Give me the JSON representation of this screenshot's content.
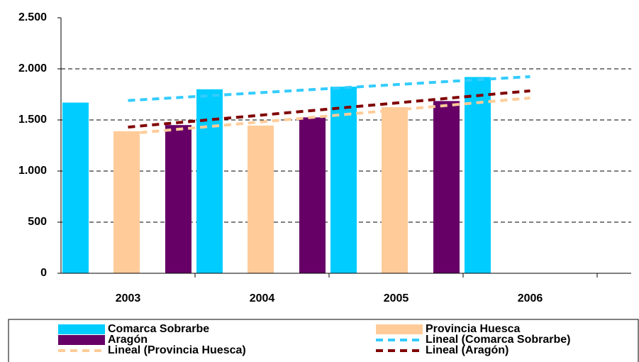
{
  "chart_data": {
    "type": "bar",
    "categories": [
      "2003",
      "2004",
      "2005",
      "2006"
    ],
    "series": [
      {
        "name": "Comarca Sobrarbe",
        "color": "#00ccff",
        "values": [
          1670,
          1800,
          1825,
          1920
        ]
      },
      {
        "name": "Provincia Huesca",
        "color": "#ffcc99",
        "values": [
          1390,
          1445,
          1625,
          null
        ]
      },
      {
        "name": "Aragón",
        "color": "#660066",
        "values": [
          1450,
          1525,
          1685,
          null
        ]
      }
    ],
    "trendlines": [
      {
        "name": "Lineal (Comarca Sobrarbe)",
        "color": "#33ccff",
        "values": [
          1690,
          1768,
          1846,
          1924
        ]
      },
      {
        "name": "Lineal (Provincia Huesca)",
        "color": "#ffcc99",
        "values": [
          1365,
          1482,
          1598,
          1715
        ]
      },
      {
        "name": "Lineal (Aragón)",
        "color": "#800000",
        "values": [
          1430,
          1548,
          1666,
          1785
        ]
      }
    ],
    "ylim": [
      0,
      2500
    ],
    "yticks": [
      0,
      500,
      {
        "value": 1000,
        "label": "1.000"
      },
      {
        "value": 1500,
        "label": "1.500"
      },
      {
        "value": 2000,
        "label": "2.000"
      },
      {
        "value": 2500,
        "label": "2.500"
      }
    ],
    "grid": true
  }
}
